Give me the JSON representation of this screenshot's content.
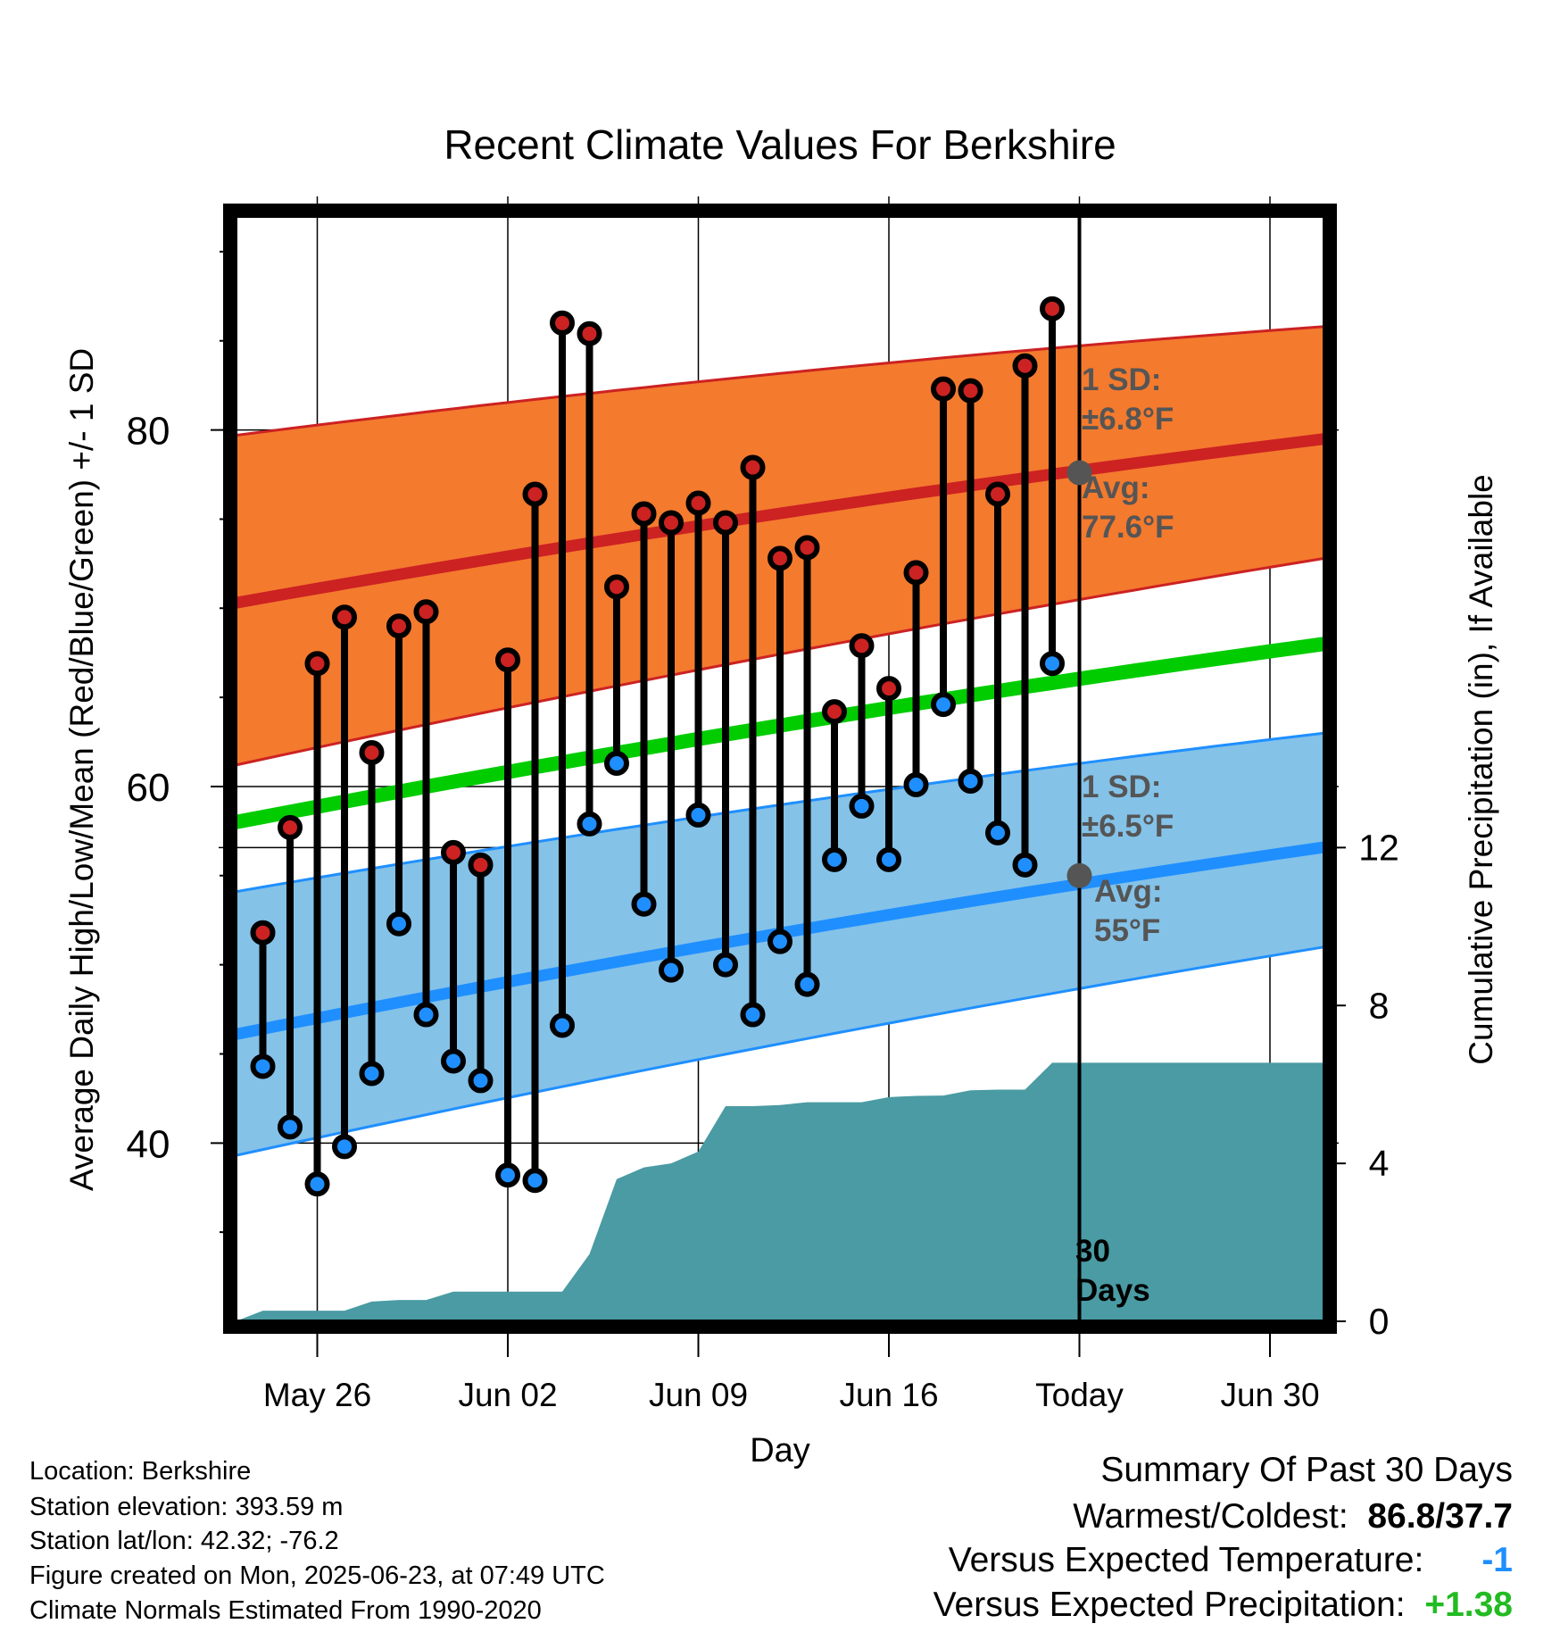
{
  "chart_data": {
    "type": "line",
    "title": "Recent Climate Values For Berkshire",
    "xlabel": "Day",
    "ylabel": "Average Daily High/Low/Mean (Red/Blue/Green) +/- 1 SD",
    "y2label": "Cumulative Precipitation (in), If Available",
    "x_tick_labels": [
      "May 26",
      "Jun 02",
      "Jun 09",
      "Jun 16",
      "Today",
      "Jun 30"
    ],
    "x_range_day_index": [
      0,
      40
    ],
    "x_tick_day_index": [
      3,
      10,
      17,
      24,
      31,
      38
    ],
    "today_index": 31,
    "ylim": [
      30,
      92
    ],
    "yticks": [
      40,
      60,
      80
    ],
    "y2lim": [
      0,
      28
    ],
    "y2ticks": [
      0,
      4,
      8,
      12
    ],
    "grid": true,
    "high_color": "#cc2222",
    "low_color": "#1f8fff",
    "mean_color": "#00cc00",
    "precip_color": "#4a9ba3",
    "observed": {
      "day_index": [
        1,
        2,
        3,
        4,
        5,
        6,
        7,
        8,
        9,
        10,
        11,
        12,
        13,
        14,
        15,
        16,
        17,
        18,
        19,
        20,
        21,
        22,
        23,
        24,
        25,
        26,
        27,
        28,
        29,
        30
      ],
      "high": [
        51.8,
        57.7,
        66.9,
        69.5,
        61.9,
        69.0,
        69.8,
        56.3,
        55.6,
        67.1,
        76.4,
        86.0,
        85.4,
        71.2,
        75.3,
        74.8,
        75.9,
        74.8,
        77.9,
        72.8,
        73.4,
        64.2,
        67.9,
        65.5,
        72.0,
        82.3,
        82.2,
        76.4,
        83.6,
        86.8
      ],
      "low": [
        44.3,
        40.9,
        37.7,
        39.8,
        43.9,
        52.3,
        47.2,
        44.6,
        43.5,
        38.2,
        37.9,
        46.6,
        57.9,
        61.3,
        53.4,
        49.7,
        58.4,
        50.0,
        47.2,
        51.3,
        48.9,
        55.9,
        58.9,
        55.9,
        60.1,
        64.6,
        60.3,
        57.4,
        55.6,
        66.9
      ]
    },
    "normals": {
      "day_index": [
        0,
        40
      ],
      "avg_high": [
        70.3,
        79.5
      ],
      "high_sd_upper": [
        79.7,
        85.8
      ],
      "high_sd_lower": [
        61.2,
        72.8
      ],
      "avg_low": [
        46.1,
        56.6
      ],
      "low_sd_upper": [
        54.1,
        63.0
      ],
      "low_sd_lower": [
        39.3,
        51.0
      ],
      "avg_mean": [
        58.0,
        68.0
      ]
    },
    "precip_cumulative": {
      "day_index": [
        0,
        1,
        2,
        3,
        4,
        5,
        6,
        7,
        8,
        9,
        10,
        11,
        12,
        13,
        14,
        15,
        16,
        17,
        18,
        19,
        20,
        21,
        22,
        23,
        24,
        25,
        26,
        27,
        28,
        29,
        30,
        31,
        40
      ],
      "value": [
        0.0,
        0.27,
        0.27,
        0.27,
        0.27,
        0.5,
        0.54,
        0.54,
        0.75,
        0.75,
        0.75,
        0.75,
        0.75,
        1.7,
        3.6,
        3.9,
        4.0,
        4.3,
        5.45,
        5.45,
        5.48,
        5.55,
        5.55,
        5.55,
        5.68,
        5.71,
        5.72,
        5.85,
        5.87,
        5.87,
        6.55,
        6.55,
        6.55
      ]
    },
    "annotations": [
      {
        "text": "1 SD:",
        "sub": "±6.8°F"
      },
      {
        "text": "Avg:",
        "sub": "77.6°F"
      },
      {
        "text": "1 SD:",
        "sub": "±6.5°F"
      },
      {
        "text": "Avg:",
        "sub": "55°F"
      },
      {
        "text": "30",
        "sub": "Days"
      }
    ],
    "today_markers": [
      77.6,
      55.0
    ]
  },
  "info": {
    "location": "Location: Berkshire",
    "elevation": "Station elevation: 393.59 m",
    "latlon": "Station lat/lon: 42.32; -76.2",
    "created": "Figure created on Mon, 2025-06-23, at 07:49 UTC",
    "normals": "Climate Normals Estimated From 1990-2020"
  },
  "summary": {
    "title": "Summary Of Past 30 Days",
    "warm_cold_label": "Warmest/Coldest:",
    "warm_cold_value": "86.8/37.7",
    "temp_label": "Versus Expected Temperature:",
    "temp_value": "-1",
    "temp_color": "#1f8fff",
    "precip_label": "Versus Expected Precipitation:",
    "precip_value": "+1.38",
    "precip_color": "#22bb22"
  }
}
